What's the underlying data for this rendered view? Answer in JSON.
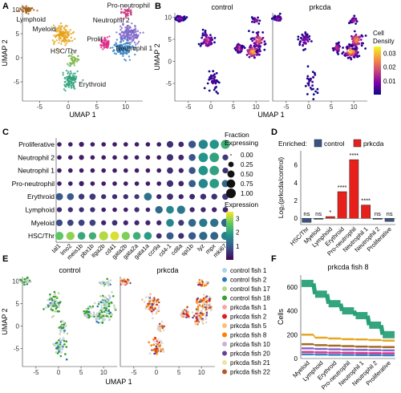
{
  "panel_labels": [
    "A",
    "B",
    "C",
    "D",
    "E",
    "F"
  ],
  "chart_data": [
    {
      "id": "A",
      "type": "scatter",
      "xlabel": "UMAP 1",
      "ylabel": "UMAP 2",
      "xticks": [
        -5,
        0,
        5,
        10
      ],
      "yticks": [
        -5,
        0,
        5,
        10
      ],
      "xlim": [
        -8,
        13
      ],
      "ylim": [
        -9,
        11
      ],
      "clusters": [
        {
          "name": "Lymphoid",
          "color": "#a0621c",
          "cx": -7.2,
          "cy": 10.0,
          "sx": 0.9,
          "sy": 0.5,
          "n": 55,
          "label_x": -6.5,
          "label_y": 7.5
        },
        {
          "name": "Myeloid",
          "color": "#e6a117",
          "cx": -1.0,
          "cy": 4.8,
          "sx": 1.1,
          "sy": 1.5,
          "n": 130,
          "label_x": -4.2,
          "label_y": 5.5
        },
        {
          "name": "Pro-neutrophil",
          "color": "#c8347a",
          "cx": 10.2,
          "cy": 9.4,
          "sx": 0.8,
          "sy": 0.6,
          "n": 40,
          "label_x": 10.5,
          "label_y": 10.4
        },
        {
          "name": "Neutrophil 2",
          "color": "#7b63c8",
          "cx": 10.6,
          "cy": 4.8,
          "sx": 1.3,
          "sy": 1.4,
          "n": 140,
          "label_x": 7.5,
          "label_y": 7.3
        },
        {
          "name": "Neutrophil 1",
          "color": "#2e7ebf",
          "cx": 9.4,
          "cy": 2.0,
          "sx": 1.3,
          "sy": 1.1,
          "n": 120,
          "label_x": 11.5,
          "label_y": 1.5
        },
        {
          "name": "Prolif",
          "color": "#df2d8a",
          "cx": 6.4,
          "cy": 3.0,
          "sx": 0.6,
          "sy": 0.8,
          "n": 70,
          "label_x": 4.6,
          "label_y": 3.4
        },
        {
          "name": "HSC/Thr",
          "color": "#7fb84b",
          "cx": 0.9,
          "cy": -0.3,
          "sx": 0.6,
          "sy": 0.9,
          "n": 45,
          "label_x": -0.8,
          "label_y": 0.9
        },
        {
          "name": "Erythroid",
          "color": "#2aa079",
          "cx": 0.3,
          "cy": -4.6,
          "sx": 1.0,
          "sy": 1.4,
          "n": 100,
          "label_x": 4.2,
          "label_y": -6.0
        }
      ]
    },
    {
      "id": "B",
      "type": "scatter",
      "facets": [
        "control",
        "prkcda"
      ],
      "xlabel": "UMAP 1",
      "ylabel": "UMAP 2",
      "xticks": [
        -5,
        0,
        5,
        10
      ],
      "yticks": [
        -5,
        0,
        5,
        10
      ],
      "xlim": [
        -8,
        13
      ],
      "ylim": [
        -9,
        11
      ],
      "legend_title": "Cell\nDensity",
      "legend_title_lines": [
        "Cell",
        "Density"
      ],
      "legend_ticks": [
        0.01,
        0.02,
        0.03
      ],
      "legend_tick_labels": [
        "0.01",
        "0.02",
        "0.03"
      ],
      "color_range": [
        0.0,
        0.035
      ],
      "colors": [
        "#0d0887",
        "#7e03a8",
        "#cc4778",
        "#f89540",
        "#f0f921"
      ],
      "hotspots": {
        "control": [
          {
            "cx": -6.8,
            "cy": 9.7,
            "sx": 0.7,
            "sy": 0.5,
            "n": 35,
            "peak": 0.012
          },
          {
            "cx": -0.8,
            "cy": 4.7,
            "sx": 1.0,
            "sy": 1.4,
            "n": 60,
            "peak": 0.016
          },
          {
            "cx": 0.5,
            "cy": -4.5,
            "sx": 1.0,
            "sy": 2.0,
            "n": 40,
            "peak": 0.005
          },
          {
            "cx": 6.3,
            "cy": 3.0,
            "sx": 0.6,
            "sy": 0.8,
            "n": 40,
            "peak": 0.018
          },
          {
            "cx": 9.3,
            "cy": 2.2,
            "sx": 1.2,
            "sy": 1.0,
            "n": 80,
            "peak": 0.03
          },
          {
            "cx": 10.6,
            "cy": 4.8,
            "sx": 1.1,
            "sy": 1.3,
            "n": 60,
            "peak": 0.022
          },
          {
            "cx": 10.0,
            "cy": 9.3,
            "sx": 0.7,
            "sy": 0.5,
            "n": 20,
            "peak": 0.012
          }
        ],
        "prkcda": [
          {
            "cx": -6.8,
            "cy": 9.7,
            "sx": 0.7,
            "sy": 0.5,
            "n": 30,
            "peak": 0.012
          },
          {
            "cx": -0.8,
            "cy": 4.7,
            "sx": 1.0,
            "sy": 1.4,
            "n": 40,
            "peak": 0.01
          },
          {
            "cx": 0.5,
            "cy": -4.5,
            "sx": 1.0,
            "sy": 2.0,
            "n": 30,
            "peak": 0.004
          },
          {
            "cx": 6.3,
            "cy": 3.0,
            "sx": 0.6,
            "sy": 0.8,
            "n": 40,
            "peak": 0.017
          },
          {
            "cx": 9.4,
            "cy": 2.2,
            "sx": 1.2,
            "sy": 1.0,
            "n": 95,
            "peak": 0.032
          },
          {
            "cx": 10.6,
            "cy": 4.8,
            "sx": 1.1,
            "sy": 1.3,
            "n": 70,
            "peak": 0.026
          },
          {
            "cx": 10.0,
            "cy": 9.3,
            "sx": 0.7,
            "sy": 0.5,
            "n": 25,
            "peak": 0.015
          }
        ]
      }
    },
    {
      "id": "C",
      "type": "heatmap",
      "rows": [
        "Proliferative",
        "Neutrophil 2",
        "Neutrophil 1",
        "Pro-neutrophil",
        "Erythroid",
        "Lymphoid",
        "Myeloid",
        "HSC/Thr"
      ],
      "columns": [
        "tal1",
        "lmo2",
        "meis1b",
        "pbx1b",
        "itga2b",
        "cd41",
        "gata2b",
        "gata2a",
        "gata1a",
        "ccr9a",
        "cd4-1",
        "cd8a",
        "spi1b",
        "lyz",
        "mpx",
        "mki67"
      ],
      "size_legend_title_lines": [
        "Fraction",
        "Expressing"
      ],
      "size_legend_values": [
        0.0,
        0.25,
        0.5,
        0.75,
        1.0
      ],
      "size_legend_labels": [
        "0.00",
        "0.25",
        "0.50",
        "0.75",
        "1.00"
      ],
      "color_legend_title": "Expression",
      "color_legend_ticks": [
        1,
        2,
        3
      ],
      "color_legend_tick_labels": [
        "1",
        "2",
        "3"
      ],
      "color_range": [
        0,
        3.5
      ],
      "colors": [
        "#440154",
        "#3b528b",
        "#21918c",
        "#5ec962",
        "#fde725"
      ],
      "fraction": [
        [
          0.15,
          0.15,
          0.2,
          0.15,
          0.15,
          0.15,
          0.15,
          0.15,
          0.15,
          0.15,
          0.4,
          0.25,
          0.55,
          0.9,
          0.9,
          0.85
        ],
        [
          0.15,
          0.15,
          0.2,
          0.15,
          0.15,
          0.15,
          0.15,
          0.15,
          0.15,
          0.15,
          0.4,
          0.25,
          0.45,
          0.95,
          0.95,
          0.3
        ],
        [
          0.15,
          0.15,
          0.15,
          0.15,
          0.15,
          0.15,
          0.15,
          0.15,
          0.15,
          0.15,
          0.35,
          0.2,
          0.45,
          0.95,
          0.95,
          0.3
        ],
        [
          0.15,
          0.15,
          0.2,
          0.15,
          0.15,
          0.15,
          0.15,
          0.15,
          0.15,
          0.15,
          0.4,
          0.25,
          0.5,
          0.9,
          0.95,
          0.5
        ],
        [
          0.5,
          0.45,
          0.3,
          0.35,
          0.2,
          0.2,
          0.2,
          0.2,
          0.6,
          0.2,
          0.35,
          0.2,
          0.25,
          0.3,
          0.3,
          0.35
        ],
        [
          0.2,
          0.2,
          0.2,
          0.2,
          0.15,
          0.15,
          0.15,
          0.2,
          0.15,
          0.55,
          0.6,
          0.7,
          0.2,
          0.2,
          0.2,
          0.25
        ],
        [
          0.4,
          0.35,
          0.35,
          0.35,
          0.2,
          0.25,
          0.2,
          0.2,
          0.2,
          0.2,
          0.6,
          0.3,
          0.6,
          0.7,
          0.7,
          0.7
        ],
        [
          0.7,
          0.7,
          0.6,
          0.55,
          0.85,
          0.8,
          0.7,
          0.6,
          0.6,
          0.25,
          0.5,
          0.3,
          0.55,
          0.7,
          0.65,
          0.7
        ]
      ],
      "expression": [
        [
          0.3,
          0.3,
          0.3,
          0.3,
          0.3,
          0.3,
          0.3,
          0.3,
          0.3,
          0.3,
          0.5,
          0.4,
          0.9,
          1.6,
          1.8,
          2.2
        ],
        [
          0.3,
          0.3,
          0.3,
          0.3,
          0.3,
          0.3,
          0.3,
          0.3,
          0.3,
          0.3,
          0.5,
          0.4,
          0.9,
          1.8,
          2.0,
          0.6
        ],
        [
          0.3,
          0.3,
          0.3,
          0.3,
          0.3,
          0.3,
          0.3,
          0.3,
          0.3,
          0.3,
          0.5,
          0.4,
          0.9,
          1.8,
          2.0,
          0.5
        ],
        [
          0.3,
          0.3,
          0.3,
          0.3,
          0.3,
          0.3,
          0.3,
          0.3,
          0.3,
          0.3,
          0.5,
          0.4,
          1.0,
          1.6,
          1.9,
          1.2
        ],
        [
          1.0,
          1.0,
          0.6,
          0.6,
          0.5,
          0.5,
          0.5,
          0.6,
          1.3,
          0.4,
          0.5,
          0.4,
          0.4,
          0.5,
          0.5,
          0.6
        ],
        [
          0.5,
          0.5,
          0.5,
          0.5,
          0.3,
          0.3,
          0.3,
          0.5,
          0.4,
          1.2,
          1.6,
          1.4,
          0.4,
          0.4,
          0.4,
          0.4
        ],
        [
          0.8,
          0.7,
          0.7,
          0.7,
          0.4,
          0.5,
          0.4,
          0.4,
          0.4,
          0.4,
          1.6,
          0.6,
          1.2,
          1.4,
          1.3,
          1.2
        ],
        [
          2.6,
          2.9,
          2.1,
          2.2,
          3.1,
          3.3,
          2.8,
          2.2,
          1.9,
          0.5,
          1.0,
          0.5,
          1.0,
          1.2,
          1.1,
          1.5
        ]
      ]
    },
    {
      "id": "D",
      "type": "bar",
      "legend_title": "Enriched:",
      "legend": [
        {
          "name": "control",
          "color": "#395484"
        },
        {
          "name": "prkcda",
          "color": "#e8201c"
        }
      ],
      "ylabel": "Log₂(prkcda/control)",
      "yticks": [
        0,
        2,
        4,
        6
      ],
      "ylim": [
        -0.7,
        7.6
      ],
      "categories": [
        "HSC/Thr",
        "Myeloid",
        "Lymphoid",
        "Erythroid",
        "Pro-neutrophil",
        "Neutrophil 1",
        "Neutrophil 2",
        "Proliferative"
      ],
      "values": [
        -0.45,
        -0.1,
        0.2,
        3.0,
        6.6,
        1.5,
        -0.1,
        -0.35
      ],
      "significance": [
        "ns",
        "ns",
        "*",
        "****",
        "****",
        "****",
        "ns",
        "ns"
      ]
    },
    {
      "id": "E",
      "type": "scatter",
      "facets": [
        "control",
        "prkcda"
      ],
      "xlabel": "UMAP 1",
      "ylabel": "UMAP 2",
      "xticks": [
        -5,
        0,
        5,
        10
      ],
      "yticks": [
        -5,
        0,
        5,
        10
      ],
      "xlim": [
        -8,
        13
      ],
      "ylim": [
        -9,
        11
      ],
      "legend": [
        {
          "name": "control fish 1",
          "color": "#a9d7ea"
        },
        {
          "name": "control fish 2",
          "color": "#2a78b5"
        },
        {
          "name": "control fish 17",
          "color": "#b1dd8a"
        },
        {
          "name": "control fish 18",
          "color": "#33a02c"
        },
        {
          "name": "prkcda fish 1",
          "color": "#f7a6a6"
        },
        {
          "name": "prkcda fish 2",
          "color": "#e31a1c"
        },
        {
          "name": "prkcda fish 5",
          "color": "#fdbf6f"
        },
        {
          "name": "prkcda fish 8",
          "color": "#ff7f00"
        },
        {
          "name": "prkcda fish 10",
          "color": "#cab2d6"
        },
        {
          "name": "prkcda fish 20",
          "color": "#6a3d9a"
        },
        {
          "name": "prkcda fish 21",
          "color": "#f2e39a"
        },
        {
          "name": "prkcda fish 22",
          "color": "#b15928"
        }
      ],
      "facet_colors": {
        "control": [
          "#33a02c",
          "#33a02c",
          "#b1dd8a",
          "#2a78b5",
          "#a9d7ea",
          "#33a02c"
        ],
        "prkcda": [
          "#ff7f00",
          "#ff7f00",
          "#ff7f00",
          "#fdbf6f",
          "#e31a1c",
          "#b15928",
          "#6a3d9a"
        ]
      }
    },
    {
      "id": "F",
      "type": "bar",
      "title": "prkcda fish 8",
      "ylabel": "Cells",
      "yticks": [
        0,
        200,
        400,
        600
      ],
      "ylim": [
        0,
        700
      ],
      "categories": [
        "Myeloid",
        "Lymphoid",
        "Erythroid",
        "Pro-neutrophil",
        "Neutrophil 1",
        "Neutrophil 2",
        "Proliferative"
      ],
      "series": [
        {
          "color": "#2aa079",
          "values": [
            630,
            540,
            460,
            400,
            360,
            280,
            200
          ]
        },
        {
          "color": "#e6a117",
          "values": [
            200,
            175,
            168,
            162,
            160,
            155,
            150
          ]
        },
        {
          "color": "#a0621c",
          "values": [
            120,
            112,
            108,
            104,
            100,
            98,
            96
          ]
        },
        {
          "color": "#7b63c8",
          "values": [
            85,
            80,
            77,
            74,
            72,
            70,
            68
          ]
        },
        {
          "color": "#df2d8a",
          "values": [
            55,
            52,
            50,
            48,
            46,
            45,
            44
          ]
        },
        {
          "color": "#2e7ebf",
          "values": [
            35,
            33,
            31,
            30,
            29,
            28,
            27
          ]
        }
      ]
    }
  ]
}
